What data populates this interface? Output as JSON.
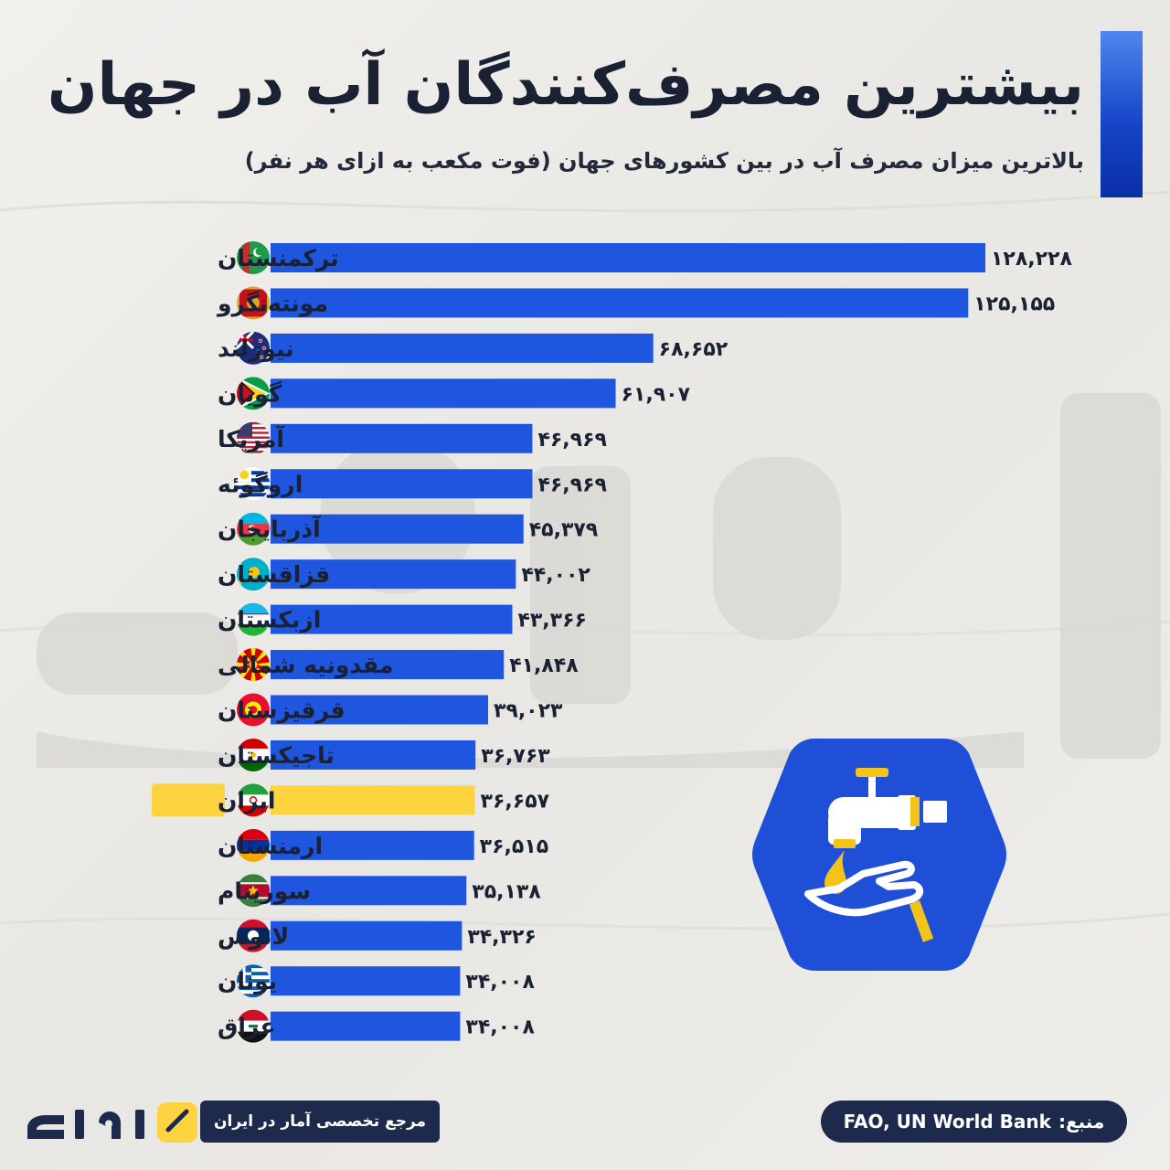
{
  "header": {
    "title": "بیشترین مصرف‌کنندگان آب در جهان",
    "subtitle": "بالاترین میزان مصرف آب در بین کشورهای جهان (فوت مکعب به ازای هر نفر)"
  },
  "colors": {
    "bar": "#1f56e0",
    "highlight_bar": "#fdd340",
    "highlight_label_bg": "#fdd340",
    "text": "#1a2133",
    "pill_bg": "#1d2a4c"
  },
  "chart_data": {
    "type": "bar",
    "orientation": "horizontal",
    "xlim": [
      0,
      136000
    ],
    "highlight": "ایران",
    "categories": [
      "ترکمنستان",
      "مونته‌نگرو",
      "نیوزلند",
      "گویان",
      "آمریکا",
      "اروگوئه",
      "آذربایجان",
      "قزاقستان",
      "ازبکستان",
      "مقدونیه شمالی",
      "قرقیزستان",
      "تاجیکستان",
      "ایران",
      "ارمنستان",
      "سورینام",
      "لائوس",
      "یونان",
      "عراق"
    ],
    "values": [
      128228,
      125155,
      68652,
      61907,
      46969,
      46969,
      45379,
      44002,
      43366,
      41848,
      39023,
      36763,
      36657,
      36515,
      35138,
      34326,
      34008,
      34008
    ],
    "value_labels": [
      "۱۲۸,۲۲۸",
      "۱۲۵,۱۵۵",
      "۶۸,۶۵۲",
      "۶۱,۹۰۷",
      "۴۶,۹۶۹",
      "۴۶,۹۶۹",
      "۴۵,۳۷۹",
      "۴۴,۰۰۲",
      "۴۳,۳۶۶",
      "۴۱,۸۴۸",
      "۳۹,۰۲۳",
      "۳۶,۷۶۳",
      "۳۶,۶۵۷",
      "۳۶,۵۱۵",
      "۳۵,۱۳۸",
      "۳۴,۳۲۶",
      "۳۴,۰۰۸",
      "۳۴,۰۰۸"
    ],
    "flags": [
      "flag-turkmenistan",
      "flag-montenegro",
      "flag-new-zealand",
      "flag-guyana",
      "flag-usa",
      "flag-uruguay",
      "flag-azerbaijan",
      "flag-kazakhstan",
      "flag-uzbekistan",
      "flag-north-macedonia",
      "flag-kyrgyzstan",
      "flag-tajikistan",
      "flag-iran",
      "flag-armenia",
      "flag-suriname",
      "flag-laos",
      "flag-greece",
      "flag-iraq"
    ]
  },
  "badge": {
    "icon": "faucet-hand-icon"
  },
  "footer": {
    "brand_logo": "آمارفکت",
    "tagline": "مرجع تخصصی آمار در ایران",
    "source_label": "منبع:",
    "source_value": "FAO, UN World Bank"
  }
}
